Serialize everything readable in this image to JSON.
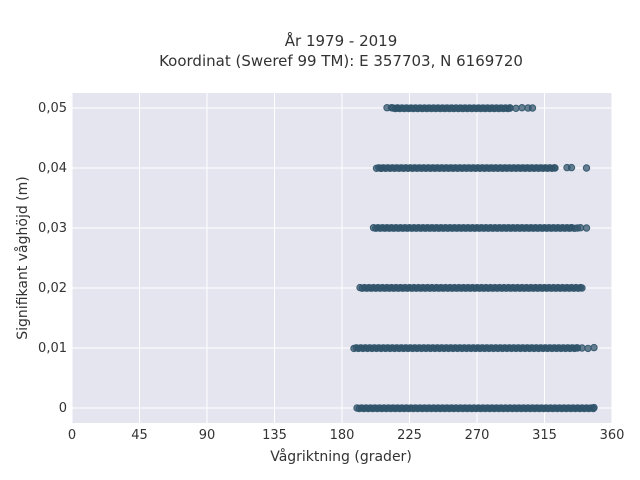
{
  "chart_data": {
    "type": "scatter",
    "title": [
      "År 1979 - 2019",
      "Koordinat (Sweref 99 TM): E 357703, N 6169720"
    ],
    "xlabel": "Vågriktning (grader)",
    "ylabel": "Signifikant våghöjd (m)",
    "xlim": [
      0,
      360
    ],
    "ylim": [
      -0.0025,
      0.0525
    ],
    "xticks": [
      0,
      45,
      90,
      135,
      180,
      225,
      270,
      315,
      360
    ],
    "xtick_labels": [
      "0",
      "45",
      "90",
      "135",
      "180",
      "225",
      "270",
      "315",
      "360"
    ],
    "yticks": [
      0,
      0.01,
      0.02,
      0.03,
      0.04,
      0.05
    ],
    "ytick_labels": [
      "0",
      "0,01",
      "0,02",
      "0,03",
      "0,04",
      "0,05"
    ],
    "grid": true,
    "background": "#e5e5f0",
    "marker_color": "#2f5369",
    "series": [
      {
        "y": 0.0,
        "dense_range": [
          190,
          348
        ],
        "x_sparse": []
      },
      {
        "y": 0.01,
        "dense_range": [
          188,
          337
        ],
        "x_sparse": [
          340,
          344,
          348
        ]
      },
      {
        "y": 0.02,
        "dense_range": [
          192,
          340
        ],
        "x_sparse": []
      },
      {
        "y": 0.03,
        "dense_range": [
          201,
          333
        ],
        "x_sparse": [
          335,
          337,
          339,
          343
        ]
      },
      {
        "y": 0.04,
        "dense_range": [
          203,
          322
        ],
        "x_sparse": [
          206,
          330,
          333,
          343
        ]
      },
      {
        "y": 0.05,
        "dense_range": [
          214,
          292
        ],
        "x_sparse": [
          210,
          213,
          217,
          296,
          300,
          304,
          307
        ]
      }
    ]
  }
}
